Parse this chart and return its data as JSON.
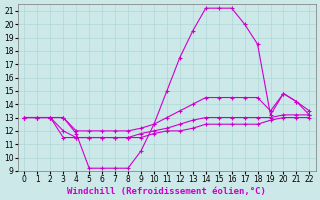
{
  "xlabel": "Windchill (Refroidissement éolien,°C)",
  "bg_color": "#cde8e8",
  "line_color": "#cc00cc",
  "xlim": [
    -0.5,
    22.5
  ],
  "ylim": [
    9,
    21.5
  ],
  "xticks": [
    0,
    1,
    2,
    3,
    4,
    5,
    6,
    7,
    8,
    9,
    10,
    11,
    12,
    13,
    14,
    15,
    16,
    17,
    18,
    19,
    20,
    21,
    22
  ],
  "yticks": [
    9,
    10,
    11,
    12,
    13,
    14,
    15,
    16,
    17,
    18,
    19,
    20,
    21
  ],
  "lines": [
    {
      "x": [
        0,
        1,
        2,
        3,
        4,
        5,
        6,
        7,
        8,
        9,
        10,
        11,
        12,
        13,
        14,
        15,
        16,
        17,
        18,
        19,
        20,
        21,
        22
      ],
      "y": [
        13,
        13,
        13,
        13,
        11.8,
        9.2,
        9.2,
        9.2,
        9.2,
        10.5,
        12.5,
        15,
        17.5,
        19.5,
        21.2,
        21.2,
        21.2,
        20,
        18.5,
        13.2,
        14.8,
        14.2,
        13.2
      ]
    },
    {
      "x": [
        0,
        1,
        2,
        3,
        4,
        5,
        6,
        7,
        8,
        9,
        10,
        11,
        12,
        13,
        14,
        15,
        16,
        17,
        18,
        19,
        20,
        21,
        22
      ],
      "y": [
        13,
        13,
        13,
        13,
        12,
        12,
        12,
        12,
        12,
        12.2,
        12.5,
        13,
        13.5,
        14,
        14.5,
        14.5,
        14.5,
        14.5,
        14.5,
        13.5,
        14.8,
        14.2,
        13.5
      ]
    },
    {
      "x": [
        0,
        1,
        2,
        3,
        4,
        5,
        6,
        7,
        8,
        9,
        10,
        11,
        12,
        13,
        14,
        15,
        16,
        17,
        18,
        19,
        20,
        21,
        22
      ],
      "y": [
        13,
        13,
        13,
        12,
        11.5,
        11.5,
        11.5,
        11.5,
        11.5,
        11.8,
        12,
        12.2,
        12.5,
        12.8,
        13,
        13,
        13,
        13,
        13,
        13,
        13.2,
        13.2,
        13.2
      ]
    },
    {
      "x": [
        0,
        1,
        2,
        3,
        4,
        5,
        6,
        7,
        8,
        9,
        10,
        11,
        12,
        13,
        14,
        15,
        16,
        17,
        18,
        19,
        20,
        21,
        22
      ],
      "y": [
        13,
        13,
        13,
        11.5,
        11.5,
        11.5,
        11.5,
        11.5,
        11.5,
        11.5,
        11.8,
        12,
        12,
        12.2,
        12.5,
        12.5,
        12.5,
        12.5,
        12.5,
        12.8,
        13,
        13,
        13
      ]
    }
  ],
  "marker": "+",
  "markersize": 3,
  "linewidth": 0.8,
  "grid_color": "#b0d8d8",
  "xlabel_fontsize": 6.5,
  "tick_fontsize": 5.5
}
